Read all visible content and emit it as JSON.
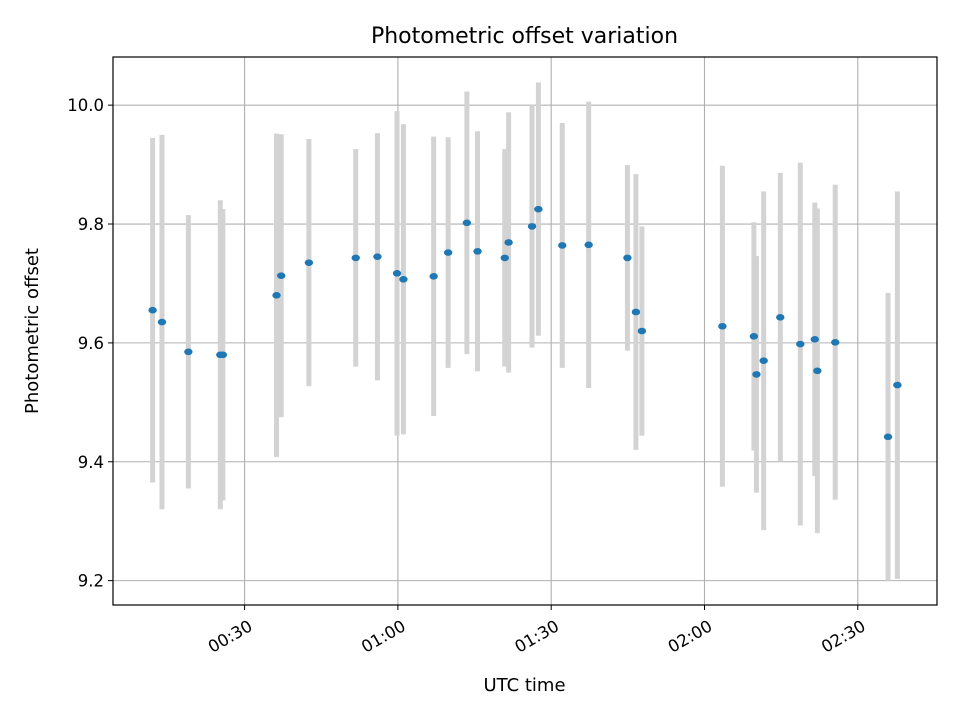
{
  "chart_data": {
    "type": "scatter",
    "title": "Photometric offset variation",
    "xlabel": "UTC time",
    "ylabel": "Photometric offset",
    "x_unit": "UTC time (HH:MM)",
    "xlim": [
      "00:04:15",
      "02:45:30"
    ],
    "ylim": [
      9.159,
      10.081
    ],
    "xticks": [
      "00:30",
      "01:00",
      "01:30",
      "02:00",
      "02:30"
    ],
    "yticks": [
      9.2,
      9.4,
      9.6,
      9.8,
      10.0
    ],
    "grid": true,
    "legend": "none",
    "errorbar_color": "#d3d3d3",
    "marker_color": "#1f77b4",
    "points": [
      {
        "x": "00:12:00",
        "y": 9.655,
        "yerr": 0.29
      },
      {
        "x": "00:13:50",
        "y": 9.635,
        "yerr": 0.315
      },
      {
        "x": "00:19:00",
        "y": 9.585,
        "yerr": 0.23
      },
      {
        "x": "00:25:15",
        "y": 9.58,
        "yerr": 0.26
      },
      {
        "x": "00:25:45",
        "y": 9.58,
        "yerr": 0.245
      },
      {
        "x": "00:36:15",
        "y": 9.68,
        "yerr": 0.272
      },
      {
        "x": "00:37:10",
        "y": 9.713,
        "yerr": 0.238
      },
      {
        "x": "00:42:35",
        "y": 9.735,
        "yerr": 0.208
      },
      {
        "x": "00:51:45",
        "y": 9.743,
        "yerr": 0.183
      },
      {
        "x": "00:56:00",
        "y": 9.745,
        "yerr": 0.208
      },
      {
        "x": "00:59:50",
        "y": 9.717,
        "yerr": 0.273
      },
      {
        "x": "01:01:05",
        "y": 9.707,
        "yerr": 0.261
      },
      {
        "x": "01:07:00",
        "y": 9.712,
        "yerr": 0.235
      },
      {
        "x": "01:09:50",
        "y": 9.752,
        "yerr": 0.194
      },
      {
        "x": "01:13:30",
        "y": 9.802,
        "yerr": 0.221
      },
      {
        "x": "01:15:35",
        "y": 9.754,
        "yerr": 0.202
      },
      {
        "x": "01:20:55",
        "y": 9.743,
        "yerr": 0.183
      },
      {
        "x": "01:21:40",
        "y": 9.769,
        "yerr": 0.219
      },
      {
        "x": "01:26:15",
        "y": 9.796,
        "yerr": 0.204
      },
      {
        "x": "01:27:30",
        "y": 9.825,
        "yerr": 0.213
      },
      {
        "x": "01:32:10",
        "y": 9.764,
        "yerr": 0.206
      },
      {
        "x": "01:37:20",
        "y": 9.765,
        "yerr": 0.241
      },
      {
        "x": "01:44:55",
        "y": 9.743,
        "yerr": 0.156
      },
      {
        "x": "01:46:35",
        "y": 9.652,
        "yerr": 0.232
      },
      {
        "x": "01:47:45",
        "y": 9.62,
        "yerr": 0.176
      },
      {
        "x": "02:03:30",
        "y": 9.628,
        "yerr": 0.27
      },
      {
        "x": "02:09:40",
        "y": 9.611,
        "yerr": 0.192
      },
      {
        "x": "02:10:10",
        "y": 9.547,
        "yerr": 0.199
      },
      {
        "x": "02:11:35",
        "y": 9.57,
        "yerr": 0.285
      },
      {
        "x": "02:14:50",
        "y": 9.643,
        "yerr": 0.243
      },
      {
        "x": "02:18:45",
        "y": 9.598,
        "yerr": 0.305
      },
      {
        "x": "02:21:35",
        "y": 9.606,
        "yerr": 0.23
      },
      {
        "x": "02:22:05",
        "y": 9.553,
        "yerr": 0.273
      },
      {
        "x": "02:25:35",
        "y": 9.601,
        "yerr": 0.265
      },
      {
        "x": "02:35:55",
        "y": 9.442,
        "yerr": 0.242
      },
      {
        "x": "02:37:45",
        "y": 9.529,
        "yerr": 0.326
      }
    ]
  }
}
